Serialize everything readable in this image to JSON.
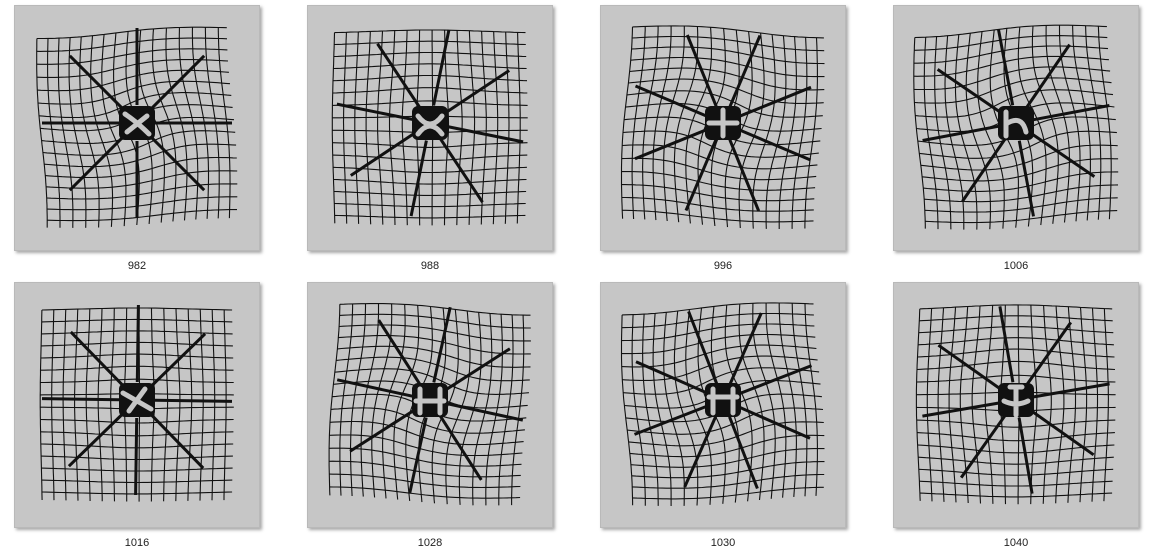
{
  "thumbnails": [
    {
      "label": "982",
      "icon": "distorted-grid-artwork-icon",
      "variant": 0
    },
    {
      "label": "988",
      "icon": "distorted-grid-artwork-icon",
      "variant": 1
    },
    {
      "label": "996",
      "icon": "distorted-grid-artwork-icon",
      "variant": 2
    },
    {
      "label": "1006",
      "icon": "distorted-grid-artwork-icon",
      "variant": 3
    },
    {
      "label": "1016",
      "icon": "distorted-grid-artwork-icon",
      "variant": 4
    },
    {
      "label": "1028",
      "icon": "distorted-grid-artwork-icon",
      "variant": 5
    },
    {
      "label": "1030",
      "icon": "distorted-grid-artwork-icon",
      "variant": 6
    },
    {
      "label": "1040",
      "icon": "distorted-grid-artwork-icon",
      "variant": 7
    }
  ],
  "colors": {
    "tile_background": "#c6c6c6",
    "ink": "#111111",
    "caption_text": "#222222",
    "page_background": "#ffffff"
  }
}
